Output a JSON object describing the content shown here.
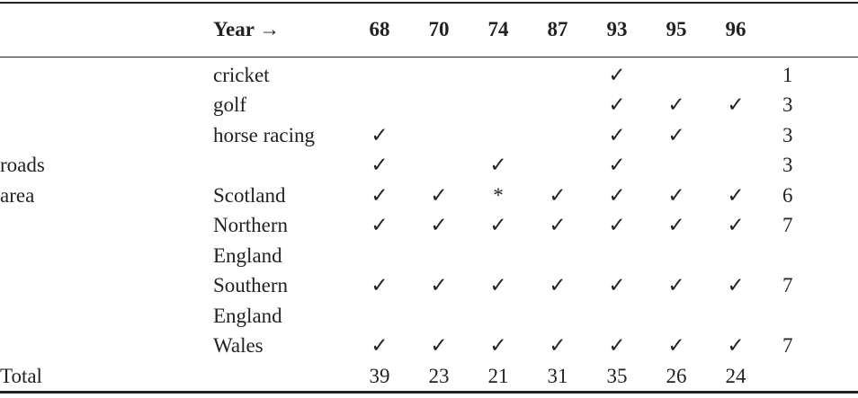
{
  "table": {
    "header": {
      "label": "Year →",
      "years": [
        68,
        70,
        74,
        87,
        93,
        95,
        96
      ]
    },
    "rows": [
      {
        "group": null,
        "label": "cricket",
        "marks": [
          null,
          null,
          null,
          null,
          "✓",
          null,
          null
        ],
        "count": 1
      },
      {
        "group": null,
        "label": "golf",
        "marks": [
          null,
          null,
          null,
          null,
          "✓",
          "✓",
          "✓"
        ],
        "count": 3
      },
      {
        "group": null,
        "label": "horse racing",
        "marks": [
          "✓",
          null,
          null,
          null,
          "✓",
          "✓",
          null
        ],
        "count": 3
      },
      {
        "group": "roads",
        "label": null,
        "marks": [
          "✓",
          null,
          "✓",
          null,
          "✓",
          null,
          null
        ],
        "count": 3
      },
      {
        "group": "area",
        "label": "Scotland",
        "marks": [
          "✓",
          "✓",
          "*",
          "✓",
          "✓",
          "✓",
          "✓"
        ],
        "count": 6
      },
      {
        "group": null,
        "label": "Northern England",
        "marks": [
          "✓",
          "✓",
          "✓",
          "✓",
          "✓",
          "✓",
          "✓"
        ],
        "count": 7
      },
      {
        "group": null,
        "label": "Southern England",
        "marks": [
          "✓",
          "✓",
          "✓",
          "✓",
          "✓",
          "✓",
          "✓"
        ],
        "count": 7
      },
      {
        "group": null,
        "label": "Wales",
        "marks": [
          "✓",
          "✓",
          "✓",
          "✓",
          "✓",
          "✓",
          "✓"
        ],
        "count": 7
      }
    ],
    "total": {
      "label": "Total",
      "values": [
        39,
        23,
        21,
        31,
        35,
        26,
        24
      ]
    }
  }
}
